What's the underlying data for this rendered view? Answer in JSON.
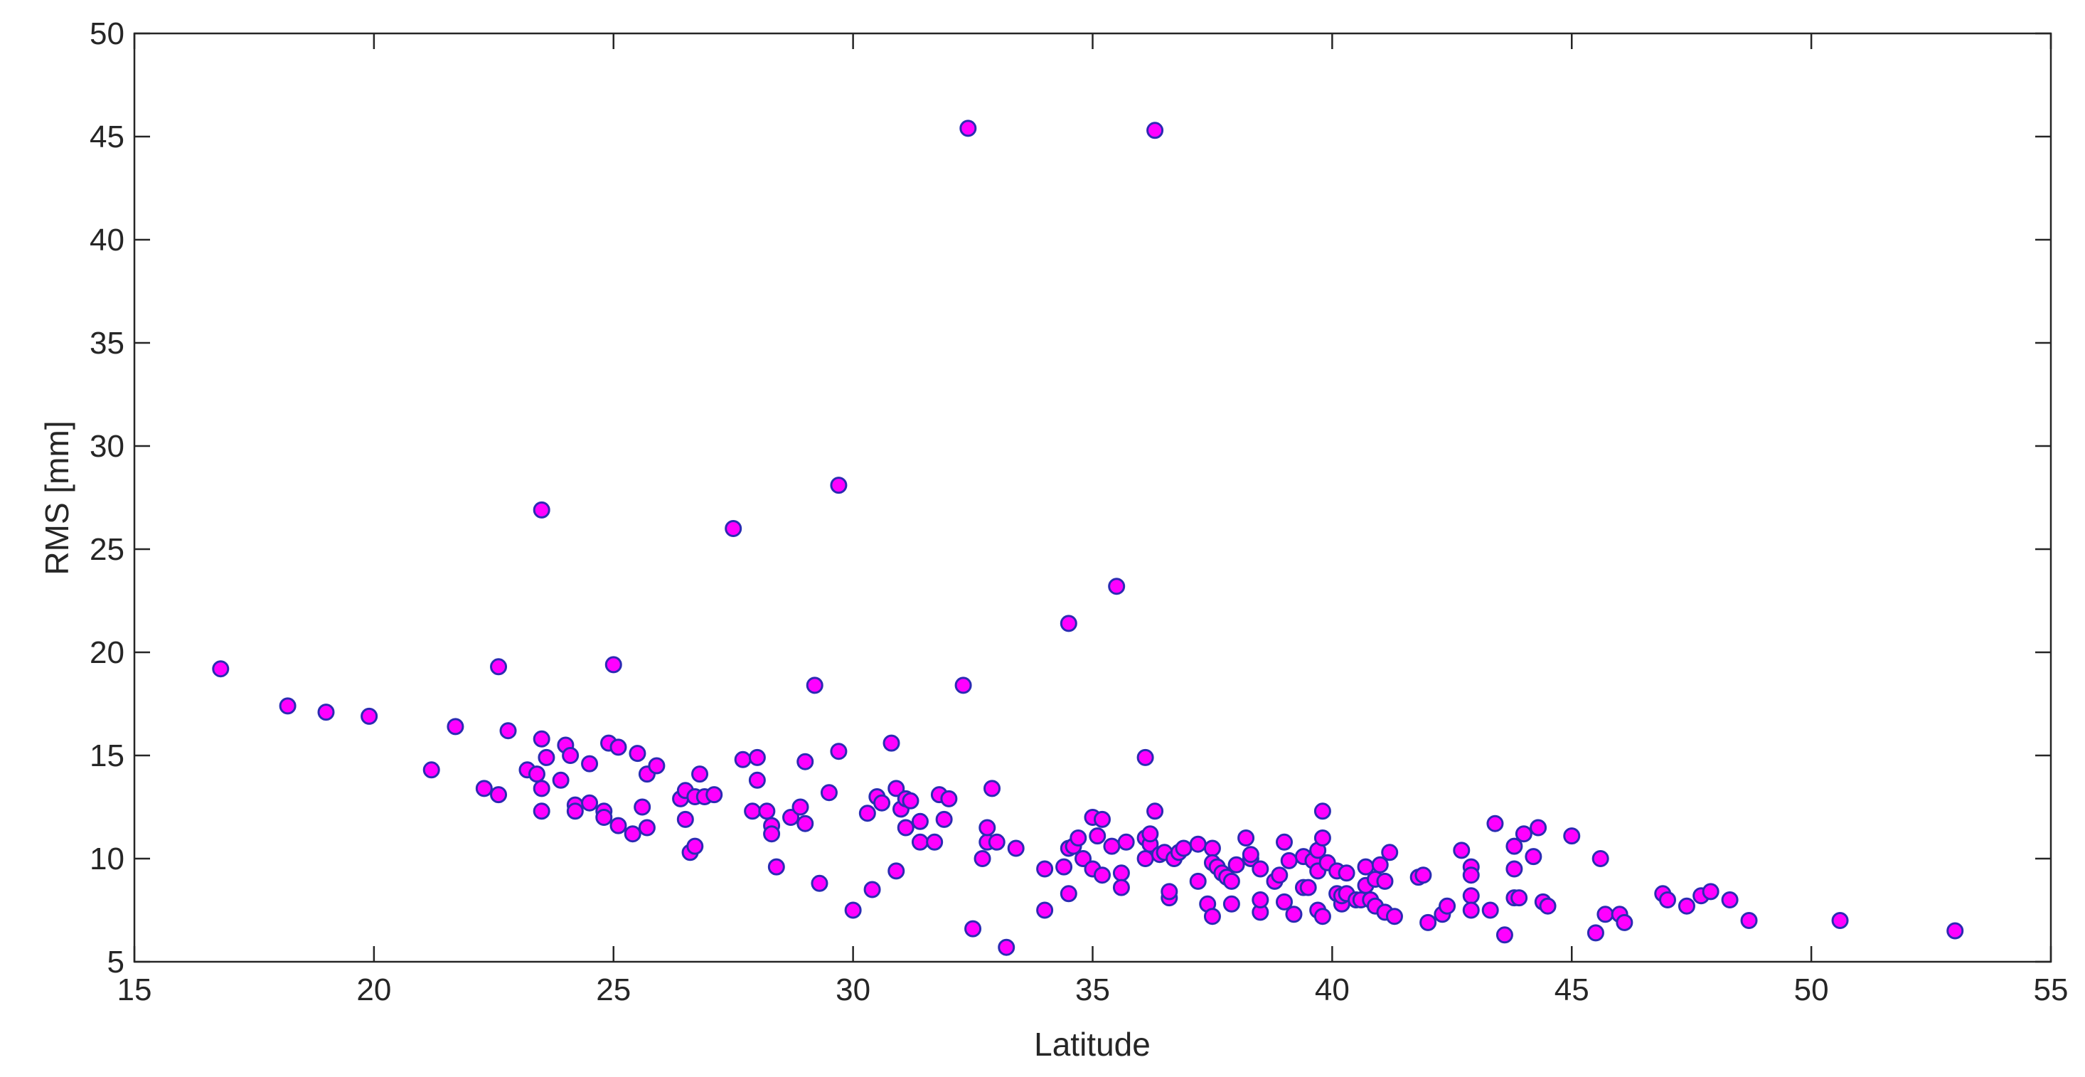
{
  "chart_data": {
    "type": "scatter",
    "title": "",
    "xlabel": "Latitude",
    "ylabel": "RMS [mm]",
    "xlim": [
      15,
      55
    ],
    "ylim": [
      5,
      50
    ],
    "xticks": [
      15,
      20,
      25,
      30,
      35,
      40,
      45,
      50,
      55
    ],
    "yticks": [
      5,
      10,
      15,
      20,
      25,
      30,
      35,
      40,
      45,
      50
    ],
    "grid": false,
    "box": true,
    "marker": {
      "shape": "circle",
      "fill": "#ff00ff",
      "edge": "#2b2bb3"
    },
    "points": [
      [
        16.8,
        19.2
      ],
      [
        18.2,
        17.4
      ],
      [
        19.0,
        17.1
      ],
      [
        19.9,
        16.9
      ],
      [
        21.2,
        14.3
      ],
      [
        21.7,
        16.4
      ],
      [
        22.3,
        13.4
      ],
      [
        22.6,
        19.3
      ],
      [
        22.6,
        13.1
      ],
      [
        22.8,
        16.2
      ],
      [
        23.2,
        14.3
      ],
      [
        23.4,
        14.1
      ],
      [
        23.5,
        13.4
      ],
      [
        23.5,
        12.3
      ],
      [
        23.5,
        15.8
      ],
      [
        23.6,
        14.9
      ],
      [
        23.5,
        26.9
      ],
      [
        23.9,
        13.8
      ],
      [
        24.0,
        15.5
      ],
      [
        24.1,
        15.0
      ],
      [
        24.2,
        12.6
      ],
      [
        24.2,
        12.3
      ],
      [
        24.5,
        12.7
      ],
      [
        24.5,
        14.6
      ],
      [
        24.8,
        12.3
      ],
      [
        24.8,
        12.0
      ],
      [
        24.9,
        15.6
      ],
      [
        25.0,
        19.4
      ],
      [
        25.1,
        15.4
      ],
      [
        25.1,
        11.6
      ],
      [
        25.4,
        11.2
      ],
      [
        25.5,
        15.1
      ],
      [
        25.6,
        12.5
      ],
      [
        25.7,
        14.1
      ],
      [
        25.7,
        11.5
      ],
      [
        25.9,
        14.5
      ],
      [
        26.4,
        12.9
      ],
      [
        26.5,
        11.9
      ],
      [
        26.5,
        13.3
      ],
      [
        26.6,
        10.3
      ],
      [
        26.7,
        13.0
      ],
      [
        26.7,
        10.6
      ],
      [
        26.8,
        14.1
      ],
      [
        26.9,
        13.0
      ],
      [
        27.1,
        13.1
      ],
      [
        27.5,
        26.0
      ],
      [
        27.7,
        14.8
      ],
      [
        27.9,
        12.3
      ],
      [
        28.0,
        14.9
      ],
      [
        28.0,
        13.8
      ],
      [
        28.2,
        12.3
      ],
      [
        28.3,
        11.6
      ],
      [
        28.3,
        11.2
      ],
      [
        28.4,
        9.6
      ],
      [
        28.7,
        12.0
      ],
      [
        28.9,
        12.5
      ],
      [
        29.0,
        11.7
      ],
      [
        29.0,
        14.7
      ],
      [
        29.2,
        18.4
      ],
      [
        29.3,
        8.8
      ],
      [
        29.5,
        13.2
      ],
      [
        29.7,
        15.2
      ],
      [
        29.7,
        28.1
      ],
      [
        30.0,
        7.5
      ],
      [
        30.3,
        12.2
      ],
      [
        30.4,
        8.5
      ],
      [
        30.5,
        13.0
      ],
      [
        30.6,
        12.7
      ],
      [
        30.8,
        15.6
      ],
      [
        30.9,
        13.4
      ],
      [
        30.9,
        9.4
      ],
      [
        31.0,
        12.4
      ],
      [
        31.1,
        11.5
      ],
      [
        31.1,
        12.9
      ],
      [
        31.2,
        12.8
      ],
      [
        31.4,
        11.8
      ],
      [
        31.4,
        10.8
      ],
      [
        31.7,
        10.8
      ],
      [
        31.8,
        13.1
      ],
      [
        31.9,
        11.9
      ],
      [
        32.0,
        12.9
      ],
      [
        32.3,
        18.4
      ],
      [
        32.4,
        45.4
      ],
      [
        32.5,
        6.6
      ],
      [
        32.7,
        10.0
      ],
      [
        32.8,
        10.8
      ],
      [
        32.8,
        11.5
      ],
      [
        32.9,
        13.4
      ],
      [
        33.0,
        10.8
      ],
      [
        33.2,
        5.7
      ],
      [
        33.4,
        10.5
      ],
      [
        34.0,
        7.5
      ],
      [
        34.0,
        9.5
      ],
      [
        34.4,
        9.6
      ],
      [
        34.5,
        10.5
      ],
      [
        34.5,
        21.4
      ],
      [
        34.5,
        8.3
      ],
      [
        34.6,
        10.6
      ],
      [
        34.7,
        11.0
      ],
      [
        34.8,
        10.0
      ],
      [
        35.0,
        9.5
      ],
      [
        35.0,
        12.0
      ],
      [
        35.1,
        11.1
      ],
      [
        35.2,
        9.2
      ],
      [
        35.2,
        11.9
      ],
      [
        35.4,
        10.6
      ],
      [
        35.5,
        23.2
      ],
      [
        35.6,
        9.3
      ],
      [
        35.6,
        8.6
      ],
      [
        35.7,
        10.8
      ],
      [
        36.1,
        10.0
      ],
      [
        36.1,
        11.0
      ],
      [
        36.1,
        14.9
      ],
      [
        36.2,
        10.7
      ],
      [
        36.2,
        11.2
      ],
      [
        36.3,
        45.3
      ],
      [
        36.3,
        12.3
      ],
      [
        36.4,
        10.2
      ],
      [
        36.5,
        10.3
      ],
      [
        36.6,
        8.1
      ],
      [
        36.6,
        8.4
      ],
      [
        36.7,
        10.0
      ],
      [
        36.8,
        10.3
      ],
      [
        36.9,
        10.5
      ],
      [
        37.2,
        10.7
      ],
      [
        37.2,
        8.9
      ],
      [
        37.4,
        7.8
      ],
      [
        37.5,
        10.5
      ],
      [
        37.5,
        7.2
      ],
      [
        37.5,
        9.8
      ],
      [
        37.6,
        9.6
      ],
      [
        37.7,
        9.3
      ],
      [
        37.8,
        9.1
      ],
      [
        37.9,
        8.9
      ],
      [
        37.9,
        7.8
      ],
      [
        38.0,
        9.7
      ],
      [
        38.2,
        11.0
      ],
      [
        38.3,
        10.0
      ],
      [
        38.3,
        10.2
      ],
      [
        38.5,
        9.5
      ],
      [
        38.5,
        7.4
      ],
      [
        38.5,
        8.0
      ],
      [
        38.8,
        8.9
      ],
      [
        38.9,
        9.2
      ],
      [
        39.0,
        7.9
      ],
      [
        39.0,
        10.8
      ],
      [
        39.1,
        9.9
      ],
      [
        39.2,
        7.3
      ],
      [
        39.4,
        10.1
      ],
      [
        39.4,
        8.6
      ],
      [
        39.5,
        8.6
      ],
      [
        39.6,
        9.9
      ],
      [
        39.7,
        7.5
      ],
      [
        39.7,
        9.4
      ],
      [
        39.7,
        10.4
      ],
      [
        39.8,
        11.0
      ],
      [
        39.8,
        7.2
      ],
      [
        39.8,
        12.3
      ],
      [
        39.9,
        9.8
      ],
      [
        40.1,
        9.4
      ],
      [
        40.1,
        8.3
      ],
      [
        40.2,
        7.8
      ],
      [
        40.2,
        8.2
      ],
      [
        40.3,
        9.3
      ],
      [
        40.3,
        8.3
      ],
      [
        40.5,
        8.0
      ],
      [
        40.6,
        8.0
      ],
      [
        40.7,
        8.7
      ],
      [
        40.7,
        9.6
      ],
      [
        40.8,
        8.0
      ],
      [
        40.9,
        7.7
      ],
      [
        40.9,
        9.0
      ],
      [
        41.0,
        9.7
      ],
      [
        41.1,
        8.9
      ],
      [
        41.1,
        7.4
      ],
      [
        41.2,
        10.3
      ],
      [
        41.3,
        7.2
      ],
      [
        41.8,
        9.1
      ],
      [
        41.9,
        9.2
      ],
      [
        42.0,
        6.9
      ],
      [
        42.3,
        7.3
      ],
      [
        42.4,
        7.7
      ],
      [
        42.7,
        10.4
      ],
      [
        42.9,
        9.6
      ],
      [
        42.9,
        8.2
      ],
      [
        42.9,
        7.5
      ],
      [
        42.9,
        9.2
      ],
      [
        43.3,
        7.5
      ],
      [
        43.4,
        11.7
      ],
      [
        43.6,
        6.3
      ],
      [
        43.8,
        9.5
      ],
      [
        43.8,
        10.6
      ],
      [
        43.8,
        8.1
      ],
      [
        43.9,
        8.1
      ],
      [
        44.0,
        11.2
      ],
      [
        44.2,
        10.1
      ],
      [
        44.3,
        11.5
      ],
      [
        44.4,
        7.9
      ],
      [
        44.5,
        7.7
      ],
      [
        45.0,
        11.1
      ],
      [
        45.5,
        6.4
      ],
      [
        45.6,
        10.0
      ],
      [
        45.7,
        7.3
      ],
      [
        46.0,
        7.3
      ],
      [
        46.1,
        6.9
      ],
      [
        46.9,
        8.3
      ],
      [
        47.0,
        8.0
      ],
      [
        47.4,
        7.7
      ],
      [
        47.7,
        8.2
      ],
      [
        47.9,
        8.4
      ],
      [
        48.3,
        8.0
      ],
      [
        48.7,
        7.0
      ],
      [
        50.6,
        7.0
      ],
      [
        53.0,
        6.5
      ]
    ]
  }
}
